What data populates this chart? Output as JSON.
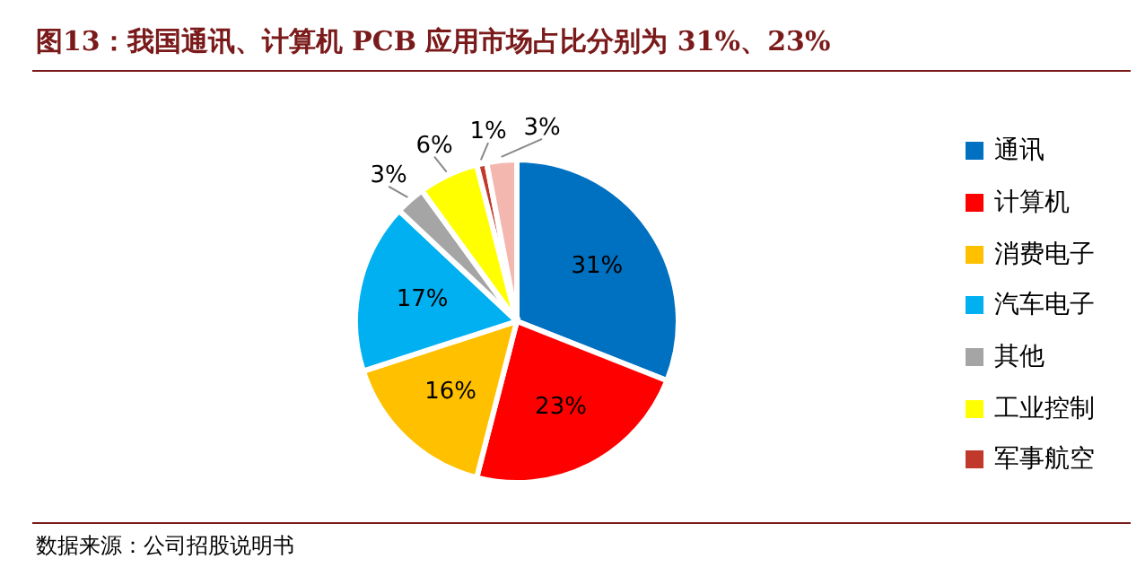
{
  "chart_data": {
    "type": "pie",
    "title": "图13：我国通讯、计算机 PCB 应用市场占比分别为 31%、23%",
    "categories": [
      "通讯",
      "计算机",
      "消费电子",
      "汽车电子",
      "其他",
      "工业控制",
      "军事航空",
      null
    ],
    "values": [
      31,
      23,
      16,
      17,
      3,
      6,
      1,
      3
    ],
    "colors": [
      "#0070c0",
      "#ff0000",
      "#ffc000",
      "#00b0f0",
      "#a5a5a5",
      "#ffff00",
      "#c0392b",
      "#f4b7b0"
    ],
    "value_labels": [
      "31%",
      "23%",
      "16%",
      "17%",
      "3%",
      "6%",
      "1%",
      "3%"
    ],
    "legend": "right",
    "annotations": [
      "数据来源：公司招股说明书"
    ]
  }
}
